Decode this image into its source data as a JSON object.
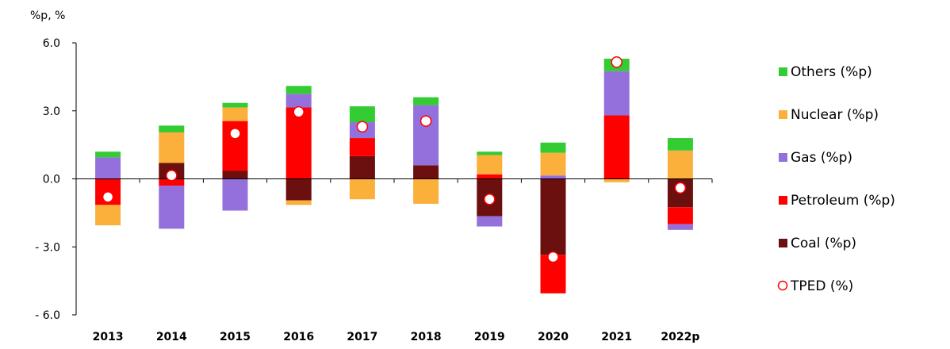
{
  "chart_data": {
    "type": "bar",
    "stacked": true,
    "unit_label": "%p, %",
    "categories": [
      "2013",
      "2014",
      "2015",
      "2016",
      "2017",
      "2018",
      "2019",
      "2020",
      "2021",
      "2022p"
    ],
    "ylim": [
      -6.0,
      6.0
    ],
    "yticks": [
      6.0,
      3.0,
      0.0,
      -3.0,
      -6.0
    ],
    "ytick_labels": [
      "6.0",
      "3.0",
      "0.0",
      "- 3.0",
      "- 6.0"
    ],
    "series": [
      {
        "name": "Coal (%p)",
        "color": "#6b0f0f",
        "values": [
          0.0,
          0.7,
          0.35,
          -0.95,
          1.0,
          0.6,
          -1.65,
          -3.35,
          0.0,
          -1.25
        ]
      },
      {
        "name": "Petroleum (%p)",
        "color": "#ff0000",
        "values": [
          -1.15,
          -0.3,
          2.2,
          3.15,
          0.8,
          0.0,
          0.2,
          -1.7,
          2.8,
          -0.75
        ]
      },
      {
        "name": "Gas (%p)",
        "color": "#9370db",
        "values": [
          0.95,
          -1.9,
          -1.4,
          0.6,
          0.7,
          2.65,
          -0.45,
          0.15,
          1.95,
          -0.25
        ]
      },
      {
        "name": "Nuclear (%p)",
        "color": "#fbb03b",
        "values": [
          -0.9,
          1.35,
          0.6,
          -0.2,
          -0.9,
          -1.1,
          0.85,
          1.0,
          -0.15,
          1.25
        ]
      },
      {
        "name": "Others (%p)",
        "color": "#33cc33",
        "values": [
          0.25,
          0.3,
          0.2,
          0.35,
          0.7,
          0.35,
          0.15,
          0.45,
          0.55,
          0.55
        ]
      }
    ],
    "tped": {
      "name": "TPED (%)",
      "values": [
        -0.8,
        0.15,
        2.0,
        2.95,
        2.3,
        2.55,
        -0.9,
        -3.45,
        5.15,
        -0.4
      ]
    },
    "legend": {
      "position": "right",
      "entries": [
        {
          "label": "Others (%p)",
          "color": "#33cc33",
          "kind": "square"
        },
        {
          "label": "Nuclear (%p)",
          "color": "#fbb03b",
          "kind": "square"
        },
        {
          "label": "Gas (%p)",
          "color": "#9370db",
          "kind": "square"
        },
        {
          "label": "Petroleum (%p)",
          "color": "#ff0000",
          "kind": "square"
        },
        {
          "label": "Coal (%p)",
          "color": "#6b0f0f",
          "kind": "square"
        },
        {
          "label": "TPED (%)",
          "color": "#ff0000",
          "kind": "circle"
        }
      ]
    },
    "grid": false
  }
}
